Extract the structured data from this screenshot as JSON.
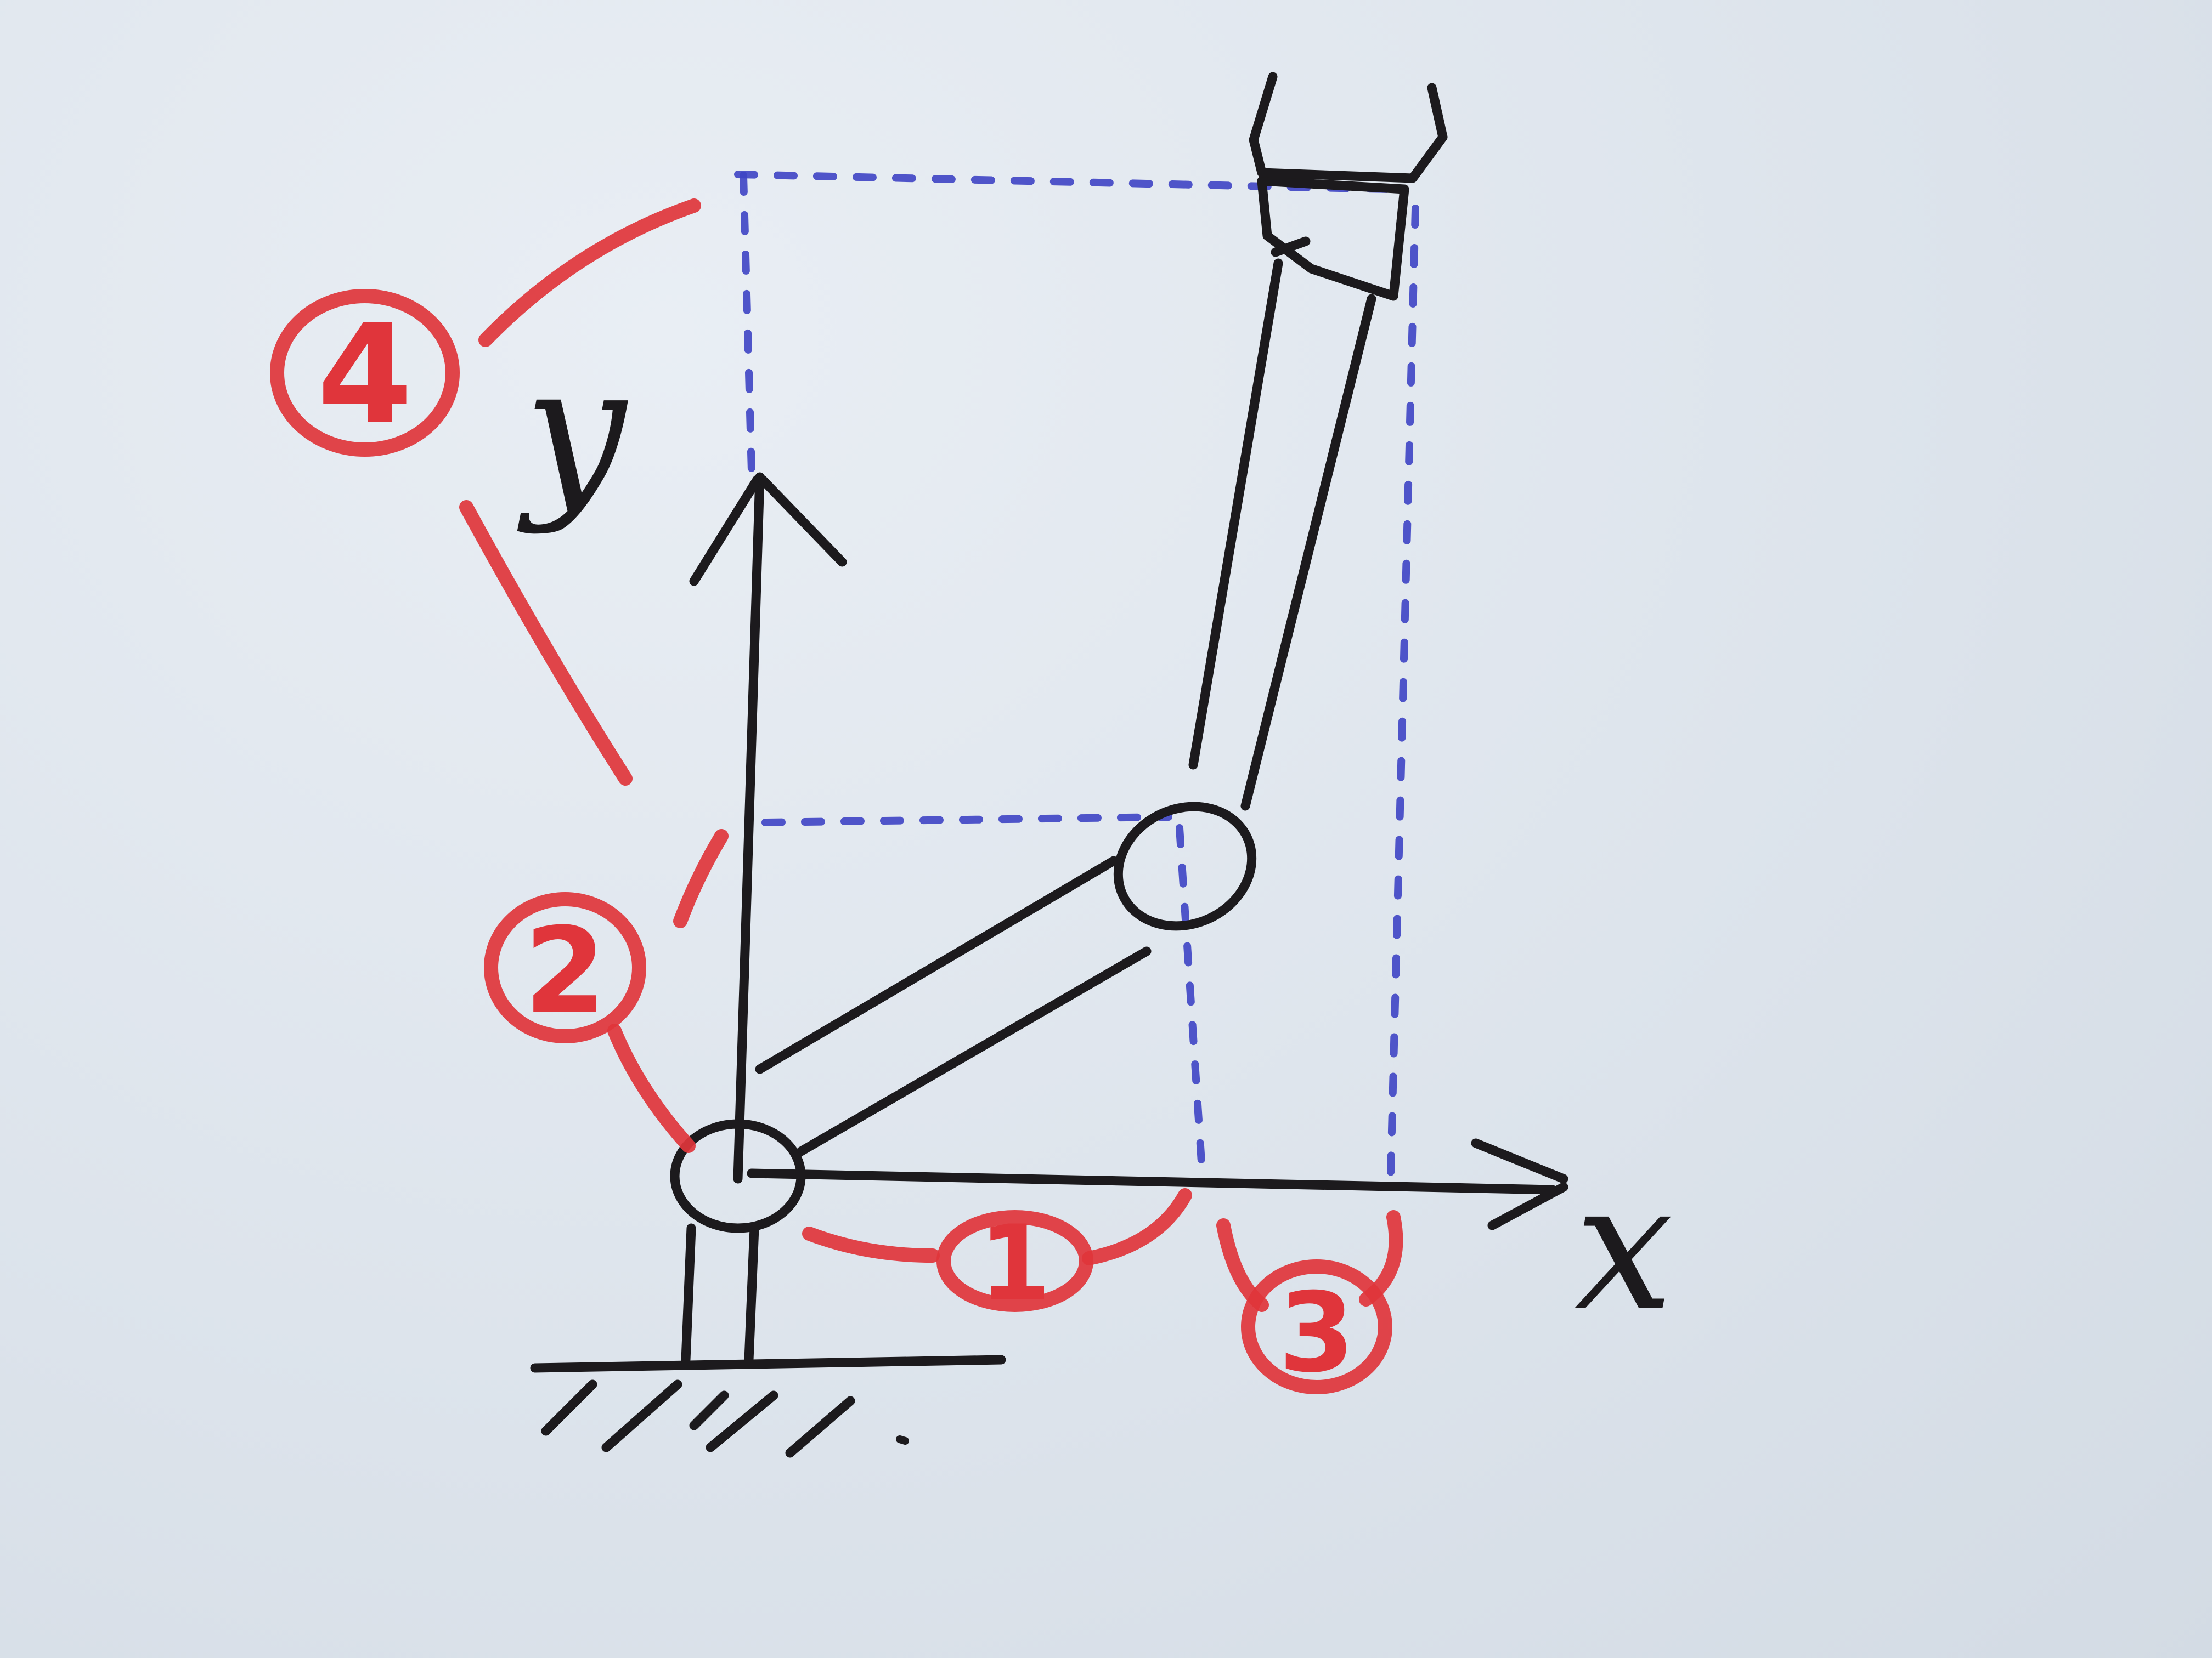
{
  "diagram": {
    "x_axis_label": "x",
    "y_axis_label": "y",
    "links": [
      {
        "number": "1"
      },
      {
        "number": "2"
      },
      {
        "number": "3"
      },
      {
        "number": "4"
      }
    ]
  },
  "colors": {
    "ink": "#1c1a1d",
    "annotation_red": "#e0353b",
    "projection_blue": "#3e44c4",
    "paper": "#dfe6ee"
  }
}
